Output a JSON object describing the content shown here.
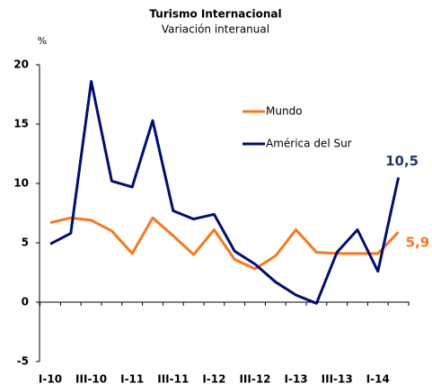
{
  "chart_data": {
    "type": "line",
    "title": "Turismo Internacional",
    "subtitle": "Variación interanual",
    "y_unit": "%",
    "categories": [
      "I-10",
      null,
      "III-10",
      null,
      "I-11",
      null,
      "III-11",
      null,
      "I-12",
      null,
      "III-12",
      null,
      "I-13",
      null,
      "III-13",
      null,
      "I-14",
      null
    ],
    "series": [
      {
        "name": "Mundo",
        "color": "#f47920",
        "label_color": "#f47920",
        "values": [
          6.7,
          7.1,
          6.9,
          6.0,
          4.1,
          7.1,
          5.6,
          4.0,
          6.1,
          3.6,
          2.8,
          3.9,
          6.1,
          4.2,
          4.1,
          4.1,
          4.1,
          5.9
        ],
        "value_labels": [
          null,
          null,
          null,
          null,
          null,
          null,
          null,
          null,
          null,
          null,
          null,
          null,
          null,
          null,
          null,
          null,
          null,
          "5,9"
        ]
      },
      {
        "name": "América del Sur",
        "color": "#000f6e",
        "label_color": "#1f3c6e",
        "values": [
          4.9,
          5.8,
          18.6,
          10.2,
          9.7,
          15.3,
          7.7,
          7.0,
          7.4,
          4.3,
          3.2,
          1.7,
          0.6,
          -0.1,
          4.2,
          6.1,
          2.6,
          10.5
        ],
        "value_labels": [
          null,
          null,
          null,
          null,
          null,
          null,
          null,
          null,
          null,
          null,
          null,
          null,
          null,
          null,
          null,
          null,
          null,
          "10,5"
        ]
      }
    ],
    "ylim": [
      -5,
      20
    ],
    "yticks": [
      -5,
      0,
      5,
      10,
      15,
      20
    ],
    "grid": false
  }
}
